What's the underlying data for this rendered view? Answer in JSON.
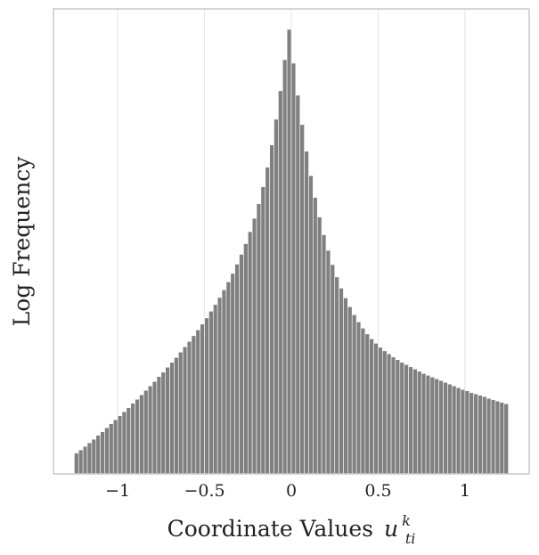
{
  "chart_data": {
    "type": "bar",
    "subtype": "histogram",
    "xlabel": "Coordinate Values",
    "xlabel_math": {
      "base": "u",
      "subscript": "ti",
      "superscript": "k"
    },
    "ylabel": "Log Frequency",
    "y_scale": "log",
    "y_ticks_shown": false,
    "xlim": [
      -1.37,
      1.37
    ],
    "ylim": [
      0,
      1.0
    ],
    "x_ticks": [
      -1,
      -0.5,
      0,
      0.5,
      1
    ],
    "x_tick_labels": [
      "−1",
      "−0.5",
      "0",
      "0.5",
      "1"
    ],
    "grid": "vertical",
    "bar_color": "#808080",
    "bin_width": 0.025,
    "bin_centers": [
      -1.2375,
      -1.2125,
      -1.1875,
      -1.1625,
      -1.1375,
      -1.1125,
      -1.0875,
      -1.0625,
      -1.0375,
      -1.0125,
      -0.9875,
      -0.9625,
      -0.9375,
      -0.9125,
      -0.8875,
      -0.8625,
      -0.8375,
      -0.8125,
      -0.7875,
      -0.7625,
      -0.7375,
      -0.7125,
      -0.6875,
      -0.6625,
      -0.6375,
      -0.6125,
      -0.5875,
      -0.5625,
      -0.5375,
      -0.5125,
      -0.4875,
      -0.4625,
      -0.4375,
      -0.4125,
      -0.3875,
      -0.3625,
      -0.3375,
      -0.3125,
      -0.2875,
      -0.2625,
      -0.2375,
      -0.2125,
      -0.1875,
      -0.1625,
      -0.1375,
      -0.1125,
      -0.0875,
      -0.0625,
      -0.0375,
      -0.0125,
      0.0125,
      0.0375,
      0.0625,
      0.0875,
      0.1125,
      0.1375,
      0.1625,
      0.1875,
      0.2125,
      0.2375,
      0.2625,
      0.2875,
      0.3125,
      0.3375,
      0.3625,
      0.3875,
      0.4125,
      0.4375,
      0.4625,
      0.4875,
      0.5125,
      0.5375,
      0.5625,
      0.5875,
      0.6125,
      0.6375,
      0.6625,
      0.6875,
      0.7125,
      0.7375,
      0.7625,
      0.7875,
      0.8125,
      0.8375,
      0.8625,
      0.8875,
      0.9125,
      0.9375,
      0.9625,
      0.9875,
      1.0125,
      1.0375,
      1.0625,
      1.0875,
      1.1125,
      1.1375,
      1.1625,
      1.1875,
      1.2125,
      1.2375
    ],
    "values_normalized_log": [
      0.047,
      0.054,
      0.062,
      0.07,
      0.078,
      0.087,
      0.095,
      0.104,
      0.113,
      0.122,
      0.131,
      0.14,
      0.149,
      0.159,
      0.168,
      0.178,
      0.188,
      0.198,
      0.208,
      0.219,
      0.229,
      0.24,
      0.251,
      0.262,
      0.274,
      0.286,
      0.298,
      0.311,
      0.324,
      0.337,
      0.351,
      0.366,
      0.381,
      0.397,
      0.414,
      0.432,
      0.451,
      0.472,
      0.494,
      0.518,
      0.545,
      0.575,
      0.608,
      0.646,
      0.69,
      0.74,
      0.798,
      0.862,
      0.932,
      1.0,
      0.924,
      0.852,
      0.786,
      0.726,
      0.671,
      0.622,
      0.578,
      0.538,
      0.503,
      0.471,
      0.443,
      0.418,
      0.396,
      0.376,
      0.358,
      0.342,
      0.328,
      0.315,
      0.304,
      0.294,
      0.285,
      0.277,
      0.27,
      0.263,
      0.257,
      0.251,
      0.246,
      0.241,
      0.236,
      0.231,
      0.226,
      0.222,
      0.218,
      0.214,
      0.21,
      0.206,
      0.202,
      0.198,
      0.194,
      0.19,
      0.187,
      0.183,
      0.18,
      0.177,
      0.174,
      0.17,
      0.167,
      0.164,
      0.161,
      0.158
    ]
  }
}
